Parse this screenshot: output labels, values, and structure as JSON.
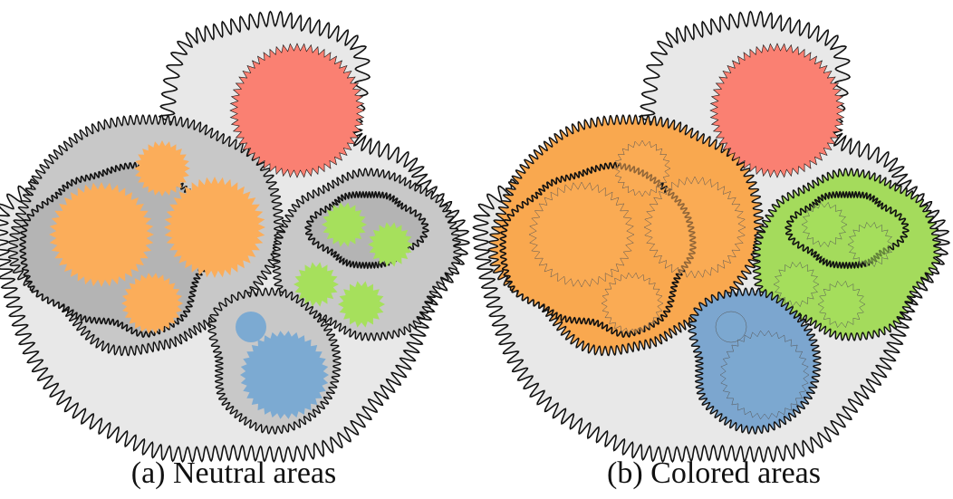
{
  "panels": [
    {
      "caption": "(a) Neutral areas",
      "fills": {
        "outer": "#e8e8e8",
        "orange_group": "#c8c8c8",
        "orange_inner": "#b4b4b4",
        "green_group": "#c8c8c8",
        "green_inner": "#b4b4b4",
        "blue_group": "#c8c8c8"
      },
      "dot_alpha": 1.0
    },
    {
      "caption": "(b) Colored areas",
      "fills": {
        "outer": "#e8e8e8",
        "orange_group": "#f9a84f",
        "orange_inner": "#f9a84f",
        "green_group": "#a4db5c",
        "green_inner": "#a4db5c",
        "blue_group": "#7ca6cf"
      },
      "dot_alpha": 0.55
    }
  ],
  "colors": {
    "red": "#fa8072",
    "orange": "#fbad5a",
    "green": "#a6e05c",
    "blue": "#7caad2",
    "outline": "#111111"
  }
}
